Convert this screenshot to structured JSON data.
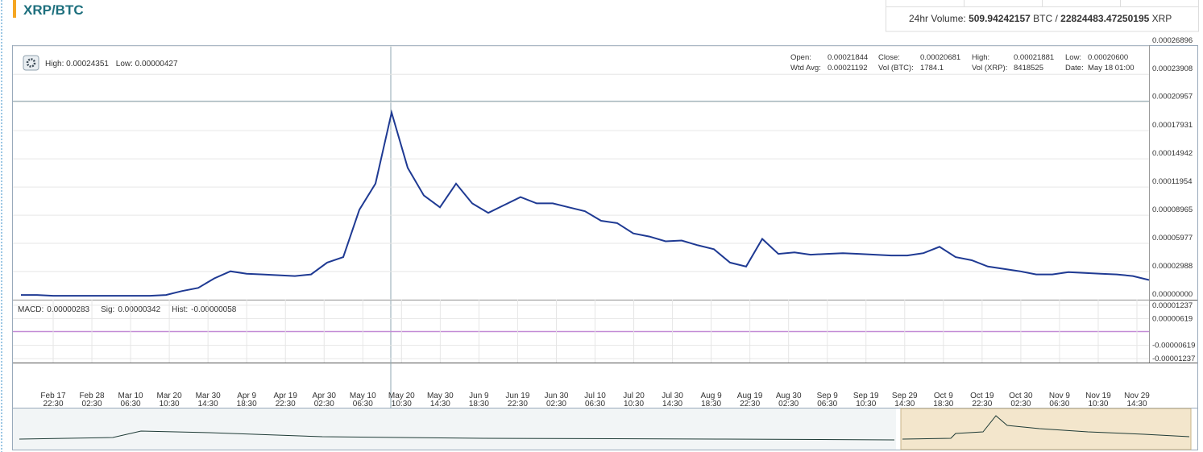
{
  "header": {
    "title": "XRP/BTC",
    "volume": {
      "label": "24hr Volume:",
      "btc": "509.94242157",
      "btc_unit": "BTC /",
      "xrp": "22824483.47250195",
      "xrp_unit": "XRP"
    }
  },
  "info": {
    "high_label": "High:",
    "high": "0.00024351",
    "low_label": "Low:",
    "low": "0.00000427",
    "ohlc": [
      [
        "Open:",
        "0.00021844",
        "Close:",
        "0.00020681",
        "High:",
        "0.00021881",
        "Low:",
        "0.00020600"
      ],
      [
        "Wtd Avg:",
        "0.00021192",
        "Vol (BTC):",
        "1784.1",
        "Vol (XRP):",
        "8418525",
        "Date:",
        "May 18 01:00"
      ]
    ]
  },
  "macd_info": [
    "MACD:",
    "0.00000283",
    "Sig:",
    "0.00000342",
    "Hist:",
    "-0.00000058"
  ],
  "chart_data": {
    "type": "line",
    "x_labels": [
      {
        "date": "Feb 17",
        "time": "22:30"
      },
      {
        "date": "Feb 28",
        "time": "02:30"
      },
      {
        "date": "Mar 10",
        "time": "06:30"
      },
      {
        "date": "Mar 20",
        "time": "10:30"
      },
      {
        "date": "Mar 30",
        "time": "14:30"
      },
      {
        "date": "Apr 9",
        "time": "18:30"
      },
      {
        "date": "Apr 19",
        "time": "22:30"
      },
      {
        "date": "Apr 30",
        "time": "02:30"
      },
      {
        "date": "May 10",
        "time": "06:30"
      },
      {
        "date": "May 20",
        "time": "10:30"
      },
      {
        "date": "May 30",
        "time": "14:30"
      },
      {
        "date": "Jun 9",
        "time": "18:30"
      },
      {
        "date": "Jun 19",
        "time": "22:30"
      },
      {
        "date": "Jun 30",
        "time": "02:30"
      },
      {
        "date": "Jul 10",
        "time": "06:30"
      },
      {
        "date": "Jul 20",
        "time": "10:30"
      },
      {
        "date": "Jul 30",
        "time": "14:30"
      },
      {
        "date": "Aug 9",
        "time": "18:30"
      },
      {
        "date": "Aug 19",
        "time": "22:30"
      },
      {
        "date": "Aug 30",
        "time": "02:30"
      },
      {
        "date": "Sep 9",
        "time": "06:30"
      },
      {
        "date": "Sep 19",
        "time": "10:30"
      },
      {
        "date": "Sep 29",
        "time": "14:30"
      },
      {
        "date": "Oct 9",
        "time": "18:30"
      },
      {
        "date": "Oct 19",
        "time": "22:30"
      },
      {
        "date": "Oct 30",
        "time": "02:30"
      },
      {
        "date": "Nov 9",
        "time": "06:30"
      },
      {
        "date": "Nov 19",
        "time": "10:30"
      },
      {
        "date": "Nov 29",
        "time": "14:30"
      }
    ],
    "series": [
      {
        "color": "#1f3a93",
        "values": [
          5.03e-06,
          5.03e-06,
          4.19e-06,
          4.19e-06,
          4.19e-06,
          4.19e-06,
          4.19e-06,
          4.19e-06,
          4.19e-06,
          5.03e-06,
          9.21e-06,
          1.256e-05,
          2.261e-05,
          3.015e-05,
          2.764e-05,
          2.68e-05,
          2.596e-05,
          2.513e-05,
          2.68e-05,
          3.936e-05,
          4.523e-05,
          9.548e-05,
          0.00012311,
          0.00019849,
          0.00013986,
          0.00011055,
          9.799e-05,
          0.00012311,
          0.00010218,
          9.213e-05,
          0.0001005,
          0.00010888,
          0.00010218,
          0.00010218,
          9.799e-05,
          9.38e-05,
          8.375e-05,
          8.124e-05,
          7.035e-05,
          6.7e-05,
          6.198e-05,
          6.281e-05,
          5.779e-05,
          5.36e-05,
          3.936e-05,
          3.518e-05,
          6.449e-05,
          4.858e-05,
          5.025e-05,
          4.774e-05,
          4.858e-05,
          4.941e-05,
          4.858e-05,
          4.774e-05,
          4.69e-05,
          4.69e-05,
          4.941e-05,
          5.611e-05,
          4.523e-05,
          4.188e-05,
          3.518e-05,
          3.266e-05,
          3.015e-05,
          2.68e-05,
          2.68e-05,
          2.931e-05,
          2.848e-05,
          2.764e-05,
          2.68e-05,
          2.513e-05,
          2.094e-05
        ]
      }
    ],
    "ylim": [
      0,
      0.00027
    ],
    "yticks": [
      {
        "value": 0,
        "label": "0.00000000"
      },
      2.988e-05,
      5.977e-05,
      8.965e-05,
      0.00011954,
      0.00014942,
      0.00017931,
      0.00020957,
      0.00023908,
      0.00026896
    ],
    "macd_ylim": [
      -1.38e-05,
      1.38e-05
    ],
    "macd_yticks": [
      -1.237e-05,
      -6.19e-06,
      6.19e-06,
      1.237e-05
    ],
    "grid": true
  }
}
